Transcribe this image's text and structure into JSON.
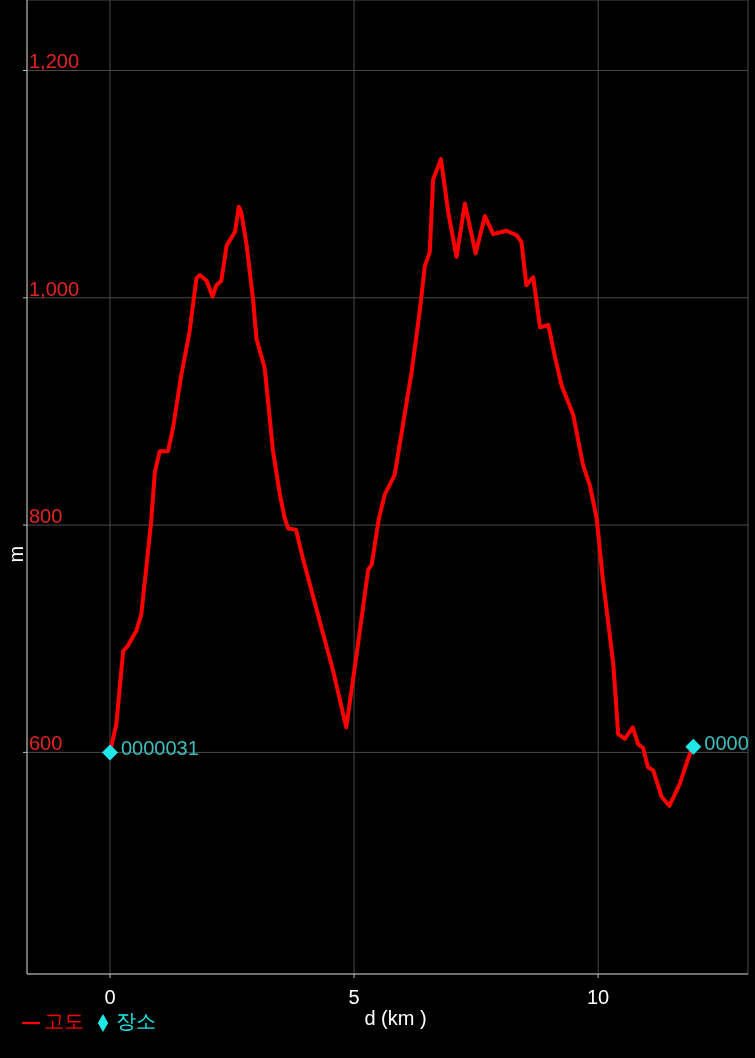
{
  "chart_data": {
    "type": "line",
    "xlabel": "d (km )",
    "ylabel": "m",
    "xlim": [
      -1.7,
      13.07
    ],
    "ylim": [
      405,
      1262
    ],
    "xticks": [
      0,
      5,
      10
    ],
    "yticks": [
      600,
      800,
      {
        "value": 1000,
        "label": "1,000"
      },
      {
        "value": 1200,
        "label": "1,200"
      }
    ],
    "grid": true,
    "legend": "bottom left",
    "line_style": "solid",
    "series": [
      {
        "name": "고도",
        "color": "#ff0000",
        "marker": "none",
        "x": [
          0,
          0.13,
          0.27,
          0.37,
          0.54,
          0.64,
          0.75,
          0.85,
          0.92,
          1.02,
          1.19,
          1.29,
          1.46,
          1.63,
          1.77,
          1.84,
          1.98,
          2.1,
          2.18,
          2.28,
          2.39,
          2.56,
          2.64,
          2.69,
          2.8,
          2.93,
          3.0,
          3.17,
          3.34,
          3.48,
          3.58,
          3.65,
          3.81,
          3.95,
          4.33,
          4.57,
          4.84,
          5.08,
          5.29,
          5.36,
          5.51,
          5.63,
          5.83,
          6.0,
          6.18,
          6.35,
          6.45,
          6.55,
          6.62,
          6.78,
          6.93,
          7.1,
          7.27,
          7.49,
          7.68,
          7.85,
          8.12,
          8.33,
          8.43,
          8.53,
          8.67,
          8.81,
          8.98,
          9.11,
          9.25,
          9.49,
          9.69,
          9.83,
          9.97,
          10.1,
          10.31,
          10.41,
          10.55,
          10.71,
          10.82,
          10.92,
          11.02,
          11.13,
          11.3,
          11.46,
          11.67,
          11.88,
          11.95
        ],
        "values": [
          600,
          625,
          689,
          694,
          707,
          721,
          765,
          806,
          847,
          865,
          865,
          885,
          932,
          970,
          1017,
          1020,
          1015,
          1001,
          1011,
          1015,
          1046,
          1058,
          1080,
          1075,
          1046,
          999,
          964,
          938,
          865,
          827,
          806,
          797,
          796,
          771,
          710,
          672,
          622,
          695,
          761,
          765,
          806,
          827,
          844,
          888,
          935,
          990,
          1028,
          1040,
          1104,
          1122,
          1075,
          1036,
          1083,
          1039,
          1072,
          1056,
          1059,
          1055,
          1049,
          1011,
          1018,
          974,
          976,
          949,
          923,
          897,
          853,
          835,
          806,
          751,
          678,
          616,
          612,
          622,
          607,
          604,
          587,
          584,
          561,
          553,
          572,
          599,
          605
        ]
      },
      {
        "name": "장소",
        "type": "scatter",
        "color": "#20e8e8",
        "marker": "diamond",
        "x": [
          0,
          11.95
        ],
        "values": [
          600,
          605
        ]
      }
    ],
    "annotations": [
      {
        "text": "0000031",
        "x": 0,
        "y": 600
      },
      {
        "text": "0000",
        "x": 11.95,
        "y": 605
      }
    ]
  }
}
